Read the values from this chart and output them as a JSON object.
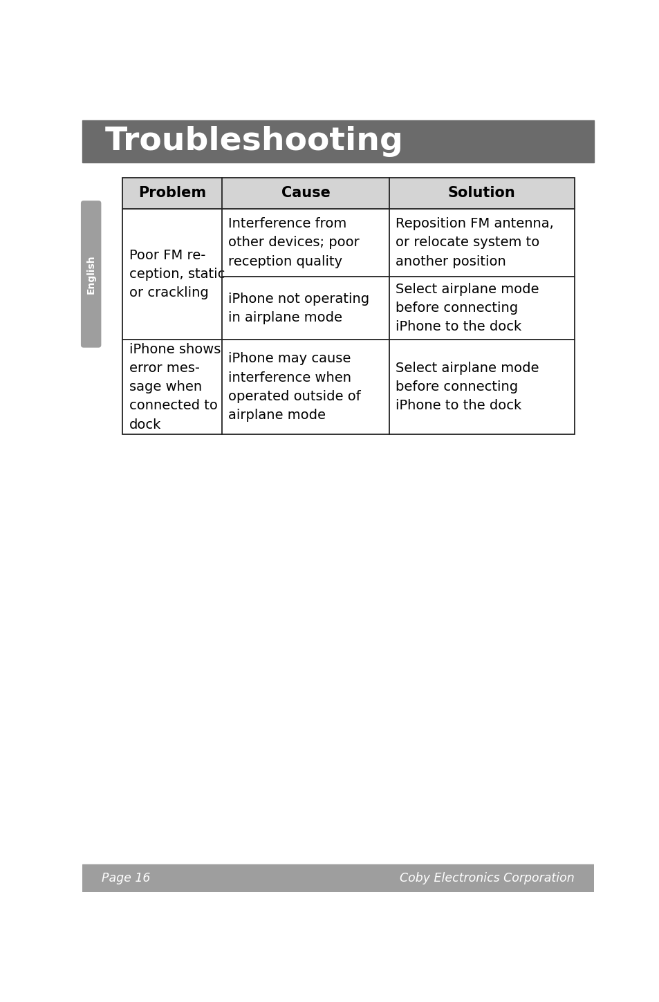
{
  "title": "Troubleshooting",
  "title_bg": "#6b6b6b",
  "title_color": "#ffffff",
  "page_bg": "#ffffff",
  "footer_bg": "#9e9e9e",
  "footer_text_left": "Page 16",
  "footer_text_right": "Coby Electronics Corporation",
  "footer_color": "#ffffff",
  "sidebar_bg": "#9e9e9e",
  "sidebar_text": "English",
  "sidebar_text_color": "#ffffff",
  "header_bg": "#d4d4d4",
  "table_border_color": "#222222",
  "table_bg": "#ffffff",
  "columns": [
    "Problem",
    "Cause",
    "Solution"
  ],
  "rows": [
    {
      "problem": "Poor FM re-\nception, static\nor crackling",
      "sub_rows": [
        {
          "cause": "Interference from\nother devices; poor\nreception quality",
          "solution": "Reposition FM antenna,\nor relocate system to\nanother position"
        },
        {
          "cause": "iPhone not operating\nin airplane mode",
          "solution": "Select airplane mode\nbefore connecting\niPhone to the dock"
        }
      ]
    },
    {
      "problem": "iPhone shows\nerror mes-\nsage when\nconnected to\ndock",
      "sub_rows": [
        {
          "cause": "iPhone may cause\ninterference when\noperated outside of\nairplane mode",
          "solution": "Select airplane mode\nbefore connecting\niPhone to the dock"
        }
      ]
    }
  ]
}
